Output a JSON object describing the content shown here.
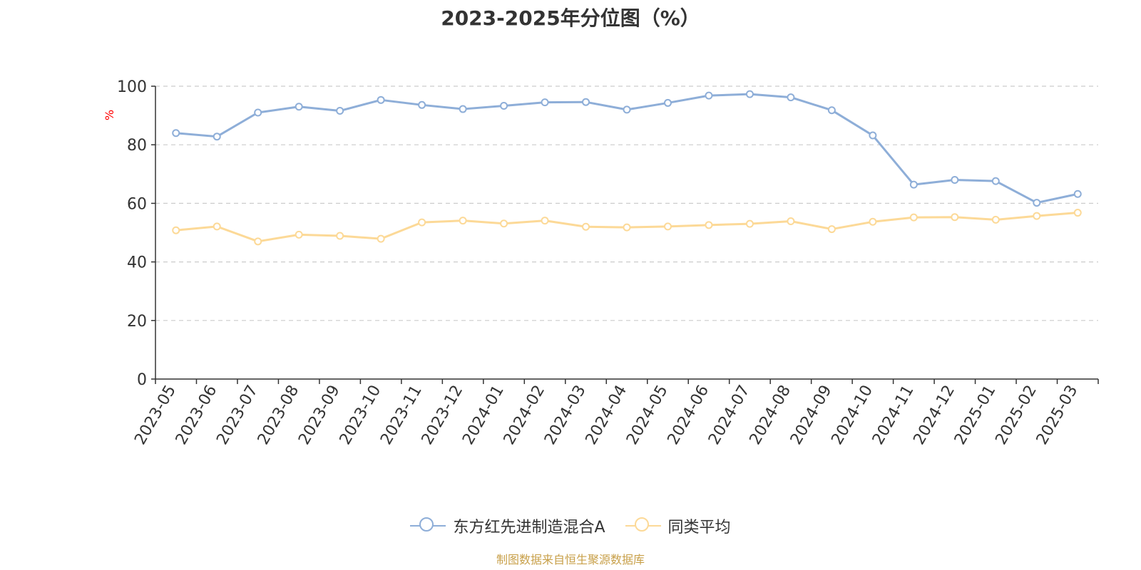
{
  "chart_data": {
    "type": "line",
    "title": "2023-2025年分位图（%）",
    "ylabel": "%",
    "xlabel": "",
    "ylim": [
      0,
      100
    ],
    "yticks": [
      0,
      20,
      40,
      60,
      80,
      100
    ],
    "grid": true,
    "legend_position": "bottom",
    "categories": [
      "2023-05",
      "2023-06",
      "2023-07",
      "2023-08",
      "2023-09",
      "2023-10",
      "2023-11",
      "2023-12",
      "2024-01",
      "2024-02",
      "2024-03",
      "2024-04",
      "2024-05",
      "2024-06",
      "2024-07",
      "2024-08",
      "2024-09",
      "2024-10",
      "2024-11",
      "2024-12",
      "2025-01",
      "2025-02",
      "2025-03"
    ],
    "series": [
      {
        "name": "东方红先进制造混合A",
        "color": "#8eaed8",
        "values": [
          84.0,
          82.8,
          91.0,
          93.0,
          91.6,
          95.3,
          93.6,
          92.2,
          93.3,
          94.5,
          94.6,
          92.0,
          94.3,
          96.8,
          97.3,
          96.2,
          91.8,
          83.2,
          66.4,
          68.0,
          67.6,
          60.2,
          63.2
        ]
      },
      {
        "name": "同类平均",
        "color": "#fcd997",
        "values": [
          50.8,
          52.1,
          47.0,
          49.3,
          48.9,
          47.9,
          53.5,
          54.1,
          53.1,
          54.1,
          52.0,
          51.8,
          52.1,
          52.6,
          53.0,
          53.9,
          51.2,
          53.7,
          55.2,
          55.3,
          54.4,
          55.7,
          56.8
        ]
      }
    ]
  },
  "source": "制图数据来自恒生聚源数据库"
}
